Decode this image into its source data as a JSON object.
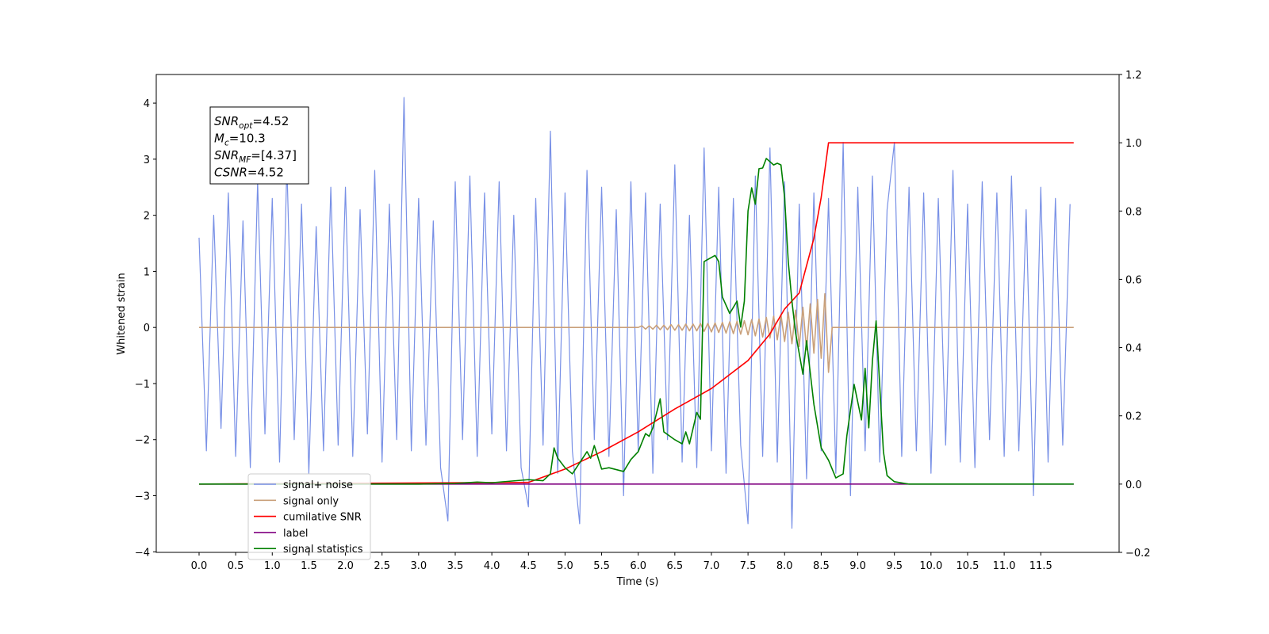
{
  "chart_data": {
    "type": "line",
    "xlabel": "Time (s)",
    "ylabel": "Whitened strain",
    "xlim": [
      -0.585,
      12.57
    ],
    "ylim": [
      -4.01,
      4.51
    ],
    "y2lim": [
      -0.2,
      1.2
    ],
    "xticks": [
      {
        "value": 0,
        "label": "0.0"
      },
      0.5,
      {
        "value": 1,
        "label": "1.0"
      },
      1.5,
      {
        "value": 2,
        "label": "2.0"
      },
      2.5,
      {
        "value": 3,
        "label": "3.0"
      },
      3.5,
      {
        "value": 4,
        "label": "4.0"
      },
      4.5,
      {
        "value": 5,
        "label": "5.0"
      },
      5.5,
      {
        "value": 6,
        "label": "6.0"
      },
      6.5,
      {
        "value": 7,
        "label": "7.0"
      },
      7.5,
      {
        "value": 8,
        "label": "8.0"
      },
      8.5,
      {
        "value": 9,
        "label": "9.0"
      },
      9.5,
      {
        "value": 10,
        "label": "10.0"
      },
      10.5,
      {
        "value": 11,
        "label": "11.0"
      },
      11.5
    ],
    "yticks": [
      {
        "value": -4,
        "label": "−4"
      },
      {
        "value": -3,
        "label": "−3"
      },
      {
        "value": -2,
        "label": "−2"
      },
      {
        "value": -1,
        "label": "−1"
      },
      0,
      1,
      2,
      3,
      4
    ],
    "y2ticks": [
      {
        "value": -0.2,
        "label": "−0.2"
      },
      {
        "value": 0,
        "label": "0.0"
      },
      0.2,
      0.4,
      0.6,
      0.8,
      {
        "value": 1,
        "label": "1.0"
      },
      1.2
    ],
    "legend_loc": "lower left",
    "annotation": [
      {
        "main": "SNR",
        "sub": "opt",
        "rest": "=4.52"
      },
      {
        "main": "M",
        "sub": "c",
        "rest": "=10.3"
      },
      {
        "main": "SNR",
        "sub": "MF",
        "rest": "=[4.37]"
      },
      {
        "main": "CSNR",
        "rest": "=4.52"
      }
    ],
    "series": [
      {
        "name": "signal+ noise",
        "color": "#7890e6",
        "axis": "y",
        "x": [
          0,
          0.1,
          0.2,
          0.3,
          0.4,
          0.5,
          0.6,
          0.7,
          0.8,
          0.9,
          1,
          1.1,
          1.2,
          1.3,
          1.4,
          1.5,
          1.6,
          1.7,
          1.8,
          1.9,
          2,
          2.1,
          2.2,
          2.3,
          2.4,
          2.5,
          2.6,
          2.7,
          2.8,
          2.9,
          3,
          3.1,
          3.2,
          3.3,
          3.4,
          3.5,
          3.6,
          3.7,
          3.8,
          3.9,
          4,
          4.1,
          4.2,
          4.3,
          4.4,
          4.5,
          4.6,
          4.7,
          4.8,
          4.9,
          5,
          5.1,
          5.2,
          5.3,
          5.4,
          5.5,
          5.6,
          5.7,
          5.8,
          5.9,
          6,
          6.1,
          6.2,
          6.3,
          6.4,
          6.5,
          6.6,
          6.7,
          6.8,
          6.9,
          7,
          7.1,
          7.2,
          7.3,
          7.4,
          7.5,
          7.6,
          7.7,
          7.8,
          7.9,
          8,
          8.1,
          8.2,
          8.3,
          8.4,
          8.5,
          8.6,
          8.7,
          8.8,
          8.9,
          9,
          9.1,
          9.2,
          9.3,
          9.4,
          9.5,
          9.6,
          9.7,
          9.8,
          9.9,
          10,
          10.1,
          10.2,
          10.3,
          10.4,
          10.5,
          10.6,
          10.7,
          10.8,
          10.9,
          11,
          11.1,
          11.2,
          11.3,
          11.4,
          11.5,
          11.6,
          11.7,
          11.8,
          11.9
        ],
        "values": [
          1.6,
          -2.2,
          2.0,
          -1.8,
          2.4,
          -2.3,
          1.9,
          -2.5,
          2.6,
          -1.9,
          2.3,
          -2.4,
          2.9,
          -2.0,
          2.2,
          -2.6,
          1.8,
          -2.2,
          2.5,
          -2.1,
          2.5,
          -2.3,
          2.1,
          -1.9,
          2.8,
          -2.4,
          2.2,
          -2.0,
          4.1,
          -2.2,
          2.3,
          -2.1,
          1.9,
          -2.5,
          -3.45,
          2.6,
          -2.0,
          2.7,
          -2.3,
          2.4,
          -1.9,
          2.6,
          -2.2,
          2.0,
          -2.5,
          -3.2,
          2.3,
          -2.1,
          3.5,
          -2.6,
          2.4,
          -2.2,
          -3.5,
          2.8,
          -2.0,
          2.5,
          -2.3,
          2.1,
          -3.0,
          2.6,
          -2.2,
          2.4,
          -2.6,
          2.2,
          -2.0,
          2.9,
          -2.4,
          2.0,
          -2.5,
          3.2,
          -2.2,
          2.5,
          -2.6,
          2.3,
          -2.1,
          -3.5,
          2.7,
          -2.3,
          3.2,
          -2.4,
          2.6,
          -3.58,
          2.2,
          -2.7,
          2.4,
          -2.2,
          2.3,
          -2.6,
          3.3,
          -3.0,
          2.5,
          -2.2,
          2.7,
          -2.4,
          2.1,
          3.3,
          -2.3,
          2.5,
          -2.2,
          2.4,
          -2.6,
          2.3,
          -2.1,
          2.8,
          -2.4,
          2.2,
          -2.5,
          2.6,
          -2.0,
          2.4,
          -2.3,
          2.7,
          -2.2,
          2.1,
          -3.0,
          2.5,
          -2.4,
          2.3,
          -2.1,
          2.2
        ]
      },
      {
        "name": "signal only",
        "color": "#c9a07a",
        "axis": "y",
        "x": [
          0,
          6.0,
          6.05,
          6.1,
          6.15,
          6.2,
          6.25,
          6.3,
          6.35,
          6.4,
          6.45,
          6.5,
          6.55,
          6.6,
          6.65,
          6.7,
          6.75,
          6.8,
          6.85,
          6.9,
          6.95,
          7.0,
          7.05,
          7.1,
          7.15,
          7.2,
          7.25,
          7.3,
          7.35,
          7.4,
          7.45,
          7.5,
          7.55,
          7.6,
          7.65,
          7.7,
          7.75,
          7.8,
          7.85,
          7.9,
          7.95,
          8.0,
          8.05,
          8.1,
          8.15,
          8.2,
          8.25,
          8.3,
          8.35,
          8.4,
          8.45,
          8.5,
          8.55,
          8.6,
          8.65,
          11.95
        ],
        "values": [
          0,
          0,
          0.03,
          -0.03,
          0.03,
          -0.03,
          0.04,
          -0.04,
          0.04,
          -0.04,
          0.05,
          -0.05,
          0.05,
          -0.05,
          0.06,
          -0.06,
          0.06,
          -0.06,
          0.07,
          -0.07,
          0.07,
          -0.08,
          0.08,
          -0.09,
          0.09,
          -0.1,
          0.1,
          -0.11,
          0.11,
          -0.12,
          0.12,
          -0.13,
          0.14,
          -0.15,
          0.15,
          -0.17,
          0.18,
          -0.19,
          0.2,
          -0.22,
          0.23,
          -0.25,
          0.27,
          -0.29,
          0.31,
          -0.34,
          0.36,
          -0.4,
          0.42,
          -0.46,
          0.5,
          -0.55,
          0.6,
          -0.8,
          0,
          0
        ]
      },
      {
        "name": "cumilative SNR",
        "color": "#ff0000",
        "axis": "y2",
        "x": [
          0,
          4.5,
          5.0,
          5.5,
          6.0,
          6.5,
          7.0,
          7.5,
          7.8,
          8.0,
          8.2,
          8.4,
          8.5,
          8.6,
          11.95
        ],
        "values": [
          0,
          0.005,
          0.044,
          0.095,
          0.153,
          0.22,
          0.28,
          0.362,
          0.44,
          0.513,
          0.56,
          0.72,
          0.84,
          1.0,
          1.0
        ]
      },
      {
        "name": "label",
        "color": "#800080",
        "axis": "y2",
        "x": [
          0,
          11.95
        ],
        "values": [
          0,
          0
        ]
      },
      {
        "name": "signal statistics",
        "color": "#008000",
        "axis": "y2",
        "x": [
          0,
          3.0,
          3.5,
          3.8,
          4.0,
          4.5,
          4.7,
          4.8,
          4.85,
          4.9,
          5.0,
          5.1,
          5.3,
          5.35,
          5.4,
          5.5,
          5.6,
          5.8,
          5.9,
          6.0,
          6.1,
          6.15,
          6.2,
          6.3,
          6.35,
          6.5,
          6.6,
          6.65,
          6.7,
          6.8,
          6.85,
          6.9,
          7.05,
          7.1,
          7.15,
          7.25,
          7.35,
          7.4,
          7.45,
          7.5,
          7.55,
          7.6,
          7.65,
          7.7,
          7.75,
          7.85,
          7.9,
          7.95,
          8.0,
          8.05,
          8.1,
          8.15,
          8.25,
          8.3,
          8.4,
          8.5,
          8.6,
          8.7,
          8.8,
          8.85,
          8.95,
          9.05,
          9.1,
          9.15,
          9.2,
          9.25,
          9.35,
          9.4,
          9.5,
          9.7,
          11.95
        ],
        "values": [
          0,
          0,
          0.002,
          0.006,
          0.004,
          0.013,
          0.01,
          0.03,
          0.106,
          0.076,
          0.048,
          0.03,
          0.095,
          0.076,
          0.113,
          0.044,
          0.048,
          0.037,
          0.072,
          0.095,
          0.148,
          0.14,
          0.165,
          0.25,
          0.153,
          0.13,
          0.118,
          0.153,
          0.118,
          0.21,
          0.19,
          0.652,
          0.67,
          0.652,
          0.548,
          0.5,
          0.536,
          0.46,
          0.536,
          0.8,
          0.868,
          0.82,
          0.924,
          0.926,
          0.954,
          0.935,
          0.94,
          0.935,
          0.84,
          0.652,
          0.536,
          0.443,
          0.322,
          0.42,
          0.234,
          0.106,
          0.07,
          0.018,
          0.03,
          0.141,
          0.292,
          0.188,
          0.339,
          0.165,
          0.362,
          0.478,
          0.095,
          0.025,
          0.007,
          0,
          0
        ]
      }
    ]
  }
}
